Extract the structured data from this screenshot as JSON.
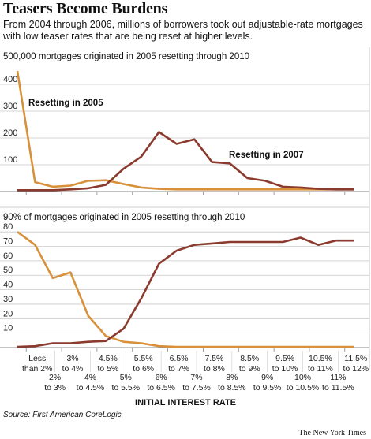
{
  "header": {
    "title": "Teasers Become Burdens",
    "subtitle": "From 2004 through 2006, millions of borrowers took out adjustable-rate mortgages with low teaser rates that are being reset at higher levels."
  },
  "footer": {
    "source": "Source: First American CoreLogic",
    "credit": "The New York Times"
  },
  "colors": {
    "series_2005": "#d8913a",
    "series_2007": "#8b3a2e",
    "grid": "#c8c8c8",
    "axis": "#888888"
  },
  "chart_data": [
    {
      "type": "line",
      "title": "500,000 mortgages originated in 2005 resetting through 2010",
      "ylim": [
        0,
        450
      ],
      "yticks": [
        100,
        200,
        300,
        400
      ],
      "x": [
        0,
        1,
        2,
        3,
        4,
        5,
        6,
        7,
        8,
        9,
        10,
        11,
        12,
        13,
        14,
        15,
        16,
        17,
        18,
        19
      ],
      "series": [
        {
          "name": "Resetting in 2005",
          "color": "#d8913a",
          "values": [
            450,
            35,
            18,
            22,
            40,
            42,
            28,
            15,
            10,
            8,
            8,
            8,
            8,
            8,
            8,
            8,
            8,
            8,
            8,
            8
          ]
        },
        {
          "name": "Resetting in 2007",
          "color": "#8b3a2e",
          "values": [
            5,
            5,
            5,
            8,
            12,
            25,
            85,
            130,
            222,
            178,
            195,
            110,
            105,
            50,
            40,
            18,
            15,
            10,
            8,
            8
          ]
        }
      ]
    },
    {
      "type": "line",
      "title": "90% of mortgages originated in 2005 resetting through 2010",
      "ylim": [
        0,
        85
      ],
      "yticks": [
        10,
        20,
        30,
        40,
        50,
        60,
        70,
        80
      ],
      "x": [
        0,
        1,
        2,
        3,
        4,
        5,
        6,
        7,
        8,
        9,
        10,
        11,
        12,
        13,
        14,
        15,
        16,
        17,
        18,
        19
      ],
      "xlabel": "INITIAL INTEREST RATE",
      "xticks_top": [
        "Less than 2%",
        "3% to 4%",
        "4.5% to 5%",
        "5.5% to 6%",
        "6.5% to 7%",
        "7.5% to 8%",
        "8.5% to 9%",
        "9.5% to 10%",
        "10.5% to 11%",
        "11.5% to 12%"
      ],
      "xticks_bottom": [
        "2% to 3%",
        "4% to 4.5%",
        "5% to 5.5%",
        "6% to 6.5%",
        "7% to 7.5%",
        "8% to 8.5%",
        "9% to 9.5%",
        "10% to 10.5%",
        "11% to 11.5%"
      ],
      "series": [
        {
          "name": "",
          "color": "#d8913a",
          "values": [
            80,
            71,
            48,
            52,
            22,
            8,
            4,
            3,
            1,
            0.5,
            0.5,
            0.5,
            0.5,
            0.5,
            0.5,
            0.5,
            0.5,
            0.5,
            0.5,
            0.5
          ]
        },
        {
          "name": "",
          "color": "#8b3a2e",
          "values": [
            0.5,
            1,
            3,
            3,
            4,
            4.5,
            13,
            34,
            58,
            67,
            71,
            72,
            73,
            73,
            73,
            73,
            76,
            71,
            74,
            74
          ]
        }
      ]
    }
  ]
}
